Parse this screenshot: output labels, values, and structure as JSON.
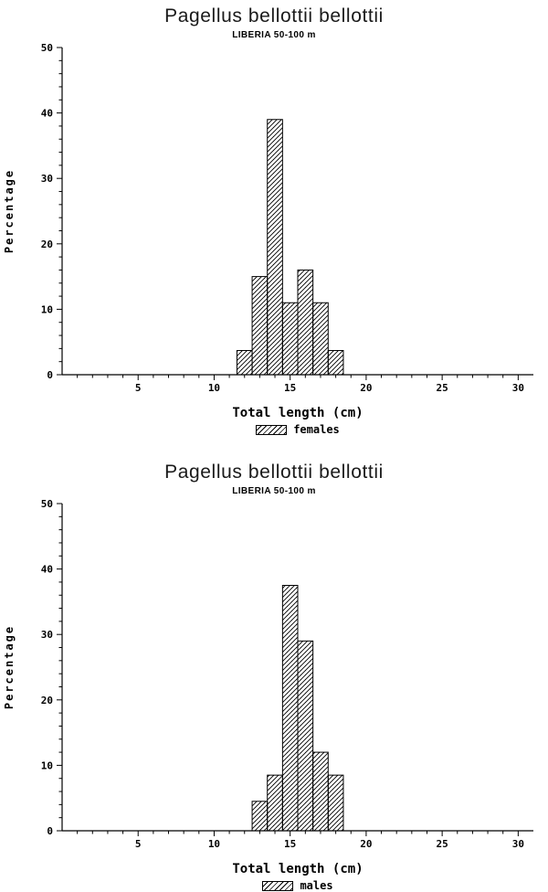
{
  "page": {
    "background": "#ffffff",
    "ink": "#000000"
  },
  "chart_data": [
    {
      "type": "bar",
      "title": "Pagellus bellottii bellottii",
      "subtitle": "LIBERIA 50-100 m",
      "xlabel": "Total length (cm)",
      "ylabel": "Percentage",
      "legend_label": "females",
      "x": [
        12,
        13,
        14,
        15,
        16,
        17,
        18
      ],
      "values": [
        3.7,
        15,
        39,
        11,
        16,
        11,
        3.7
      ],
      "bar_width": 1,
      "xlim": [
        0,
        31
      ],
      "ylim": [
        0,
        50
      ],
      "x_major_ticks": [
        5,
        10,
        15,
        20,
        25,
        30
      ],
      "x_minor_step": 1,
      "y_major_ticks": [
        0,
        10,
        20,
        30,
        40,
        50
      ],
      "y_minor_step": 2,
      "bar_fill": "diagonal-hatch",
      "grid": "off",
      "legend_position": "below-x-axis"
    },
    {
      "type": "bar",
      "title": "Pagellus bellottii bellottii",
      "subtitle": "LIBERIA 50-100 m",
      "xlabel": "Total length (cm)",
      "ylabel": "Percentage",
      "legend_label": "males",
      "x": [
        13,
        14,
        15,
        16,
        17,
        18
      ],
      "values": [
        4.5,
        8.5,
        37.5,
        29,
        12,
        8.5
      ],
      "bar_width": 1,
      "xlim": [
        0,
        31
      ],
      "ylim": [
        0,
        50
      ],
      "x_major_ticks": [
        5,
        10,
        15,
        20,
        25,
        30
      ],
      "x_minor_step": 1,
      "y_major_ticks": [
        0,
        10,
        20,
        30,
        40,
        50
      ],
      "y_minor_step": 2,
      "bar_fill": "diagonal-hatch",
      "grid": "off",
      "legend_position": "below-x-axis"
    }
  ]
}
